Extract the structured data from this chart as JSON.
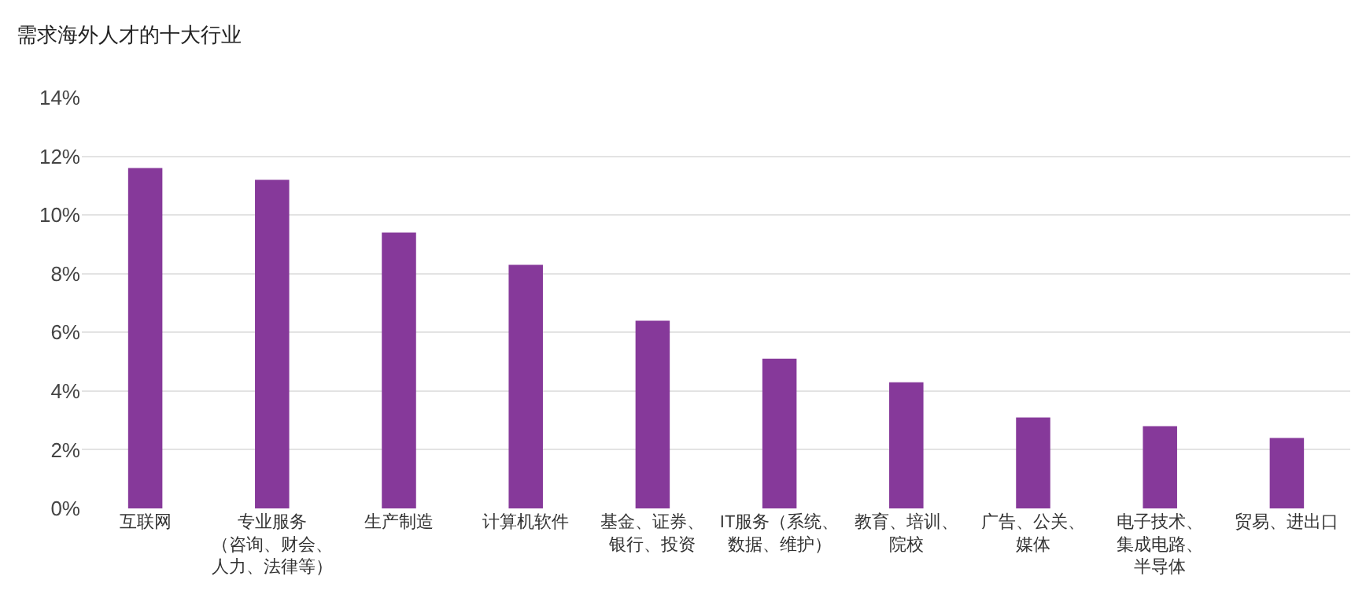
{
  "chart_data": {
    "type": "bar",
    "title": "需求海外人才的十大行业",
    "categories": [
      "互联网",
      "专业服务（咨询、财会、人力、法律等）",
      "生产制造",
      "计算机软件",
      "基金、证券、银行、投资",
      "IT服务（系统、数据、维护）",
      "教育、培训、院校",
      "广告、公关、媒体",
      "电子技术、集成电路、半导体",
      "贸易、进出口"
    ],
    "values": [
      11.6,
      11.2,
      9.4,
      8.3,
      6.4,
      5.1,
      4.3,
      3.1,
      2.8,
      2.4
    ],
    "color": "#86399a",
    "ylim": [
      0,
      14
    ],
    "yticks": [
      {
        "value": 0,
        "label": "0%"
      },
      {
        "value": 2,
        "label": "2%"
      },
      {
        "value": 4,
        "label": "4%"
      },
      {
        "value": 6,
        "label": "6%"
      },
      {
        "value": 8,
        "label": "8%"
      },
      {
        "value": 10,
        "label": "10%"
      },
      {
        "value": 12,
        "label": "12%"
      },
      {
        "value": 14,
        "label": "14%"
      }
    ],
    "grid": "y"
  }
}
